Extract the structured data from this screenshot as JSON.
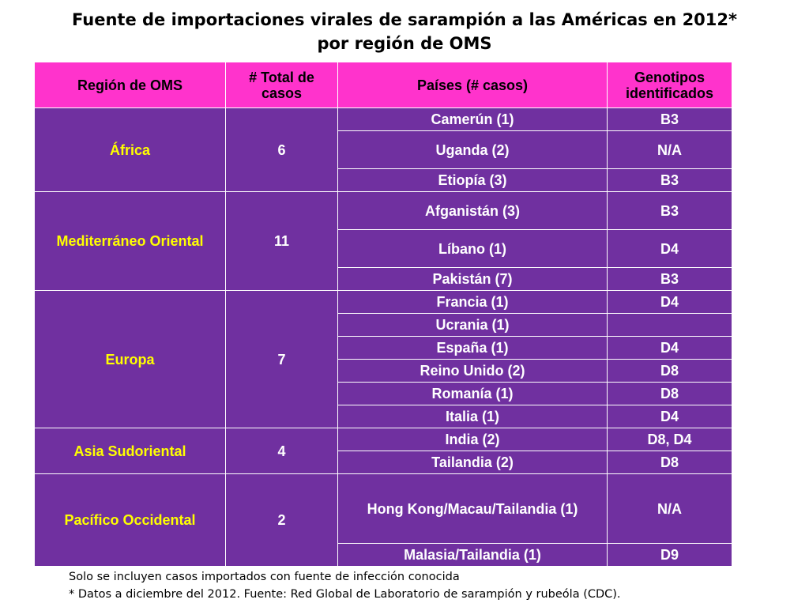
{
  "title": {
    "line1": "Fuente de importaciones virales de sarampión a las Américas en 2012*",
    "line2": "por región de OMS"
  },
  "table": {
    "headers": [
      "Región de OMS",
      "# Total de casos",
      "Países (# casos)",
      "Genotipos identificados"
    ],
    "groups": [
      {
        "region": "África",
        "total": "6",
        "rows": [
          {
            "country": "Camerún  (1)",
            "genotype": "B3"
          },
          {
            "country": "Uganda (2)",
            "genotype": "N/A"
          },
          {
            "country": "Etiopía (3)",
            "genotype": "B3"
          }
        ]
      },
      {
        "region": "Mediterráneo Oriental",
        "total": "11",
        "rows": [
          {
            "country": "Afganistán (3)",
            "genotype": "B3"
          },
          {
            "country": "Líbano (1)",
            "genotype": "D4"
          },
          {
            "country": "Pakistán (7)",
            "genotype": "B3"
          }
        ]
      },
      {
        "region": "Europa",
        "total": "7",
        "rows": [
          {
            "country": "Francia (1)",
            "genotype": "D4"
          },
          {
            "country": "Ucrania (1)",
            "genotype": ""
          },
          {
            "country": "España (1)",
            "genotype": "D4"
          },
          {
            "country": "Reino Unido (2)",
            "genotype": "D8"
          },
          {
            "country": "Romanía (1)",
            "genotype": "D8"
          },
          {
            "country": "Italia (1)",
            "genotype": "D4"
          }
        ]
      },
      {
        "region": "Asia Sudoriental",
        "total": "4",
        "rows": [
          {
            "country": "India (2)",
            "genotype": "D8, D4"
          },
          {
            "country": "Tailandia (2)",
            "genotype": "D8"
          }
        ]
      },
      {
        "region": "Pacífico Occidental",
        "total": "2",
        "rows": [
          {
            "country": "Hong Kong/Macau/Tailandia (1)",
            "genotype": "N/A"
          },
          {
            "country": "Malasia/Tailandia (1)",
            "genotype": "D9"
          }
        ]
      }
    ]
  },
  "footer": {
    "note1": "Solo se incluyen casos importados con fuente de infección conocida",
    "note2": "* Datos a diciembre del 2012. Fuente: Red Global de Laboratorio de sarampión y rubeóla (CDC)."
  },
  "colors": {
    "header_bg": "#ff33cc",
    "cell_bg": "#7030a0",
    "region_text": "#ffff00",
    "cell_text": "#ffffff"
  }
}
